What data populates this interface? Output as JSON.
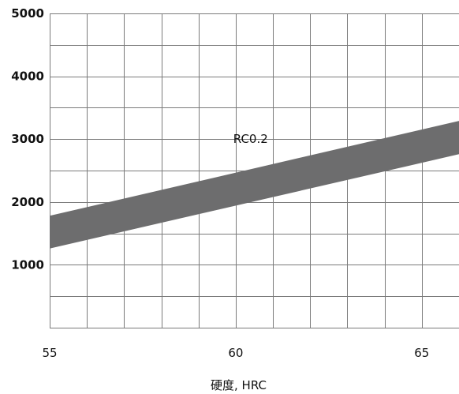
{
  "chart_data": {
    "type": "area",
    "xlabel": "硬度, HRC",
    "ylabel": "",
    "xlim": [
      55,
      66
    ],
    "ylim": [
      0,
      5000
    ],
    "x_ticks": [
      55,
      60,
      65
    ],
    "y_ticks": [
      1000,
      2000,
      3000,
      4000,
      5000
    ],
    "x_grid_step": 1,
    "y_grid_step": 500,
    "grid": true,
    "band_color": "#6d6d6e",
    "series": [
      {
        "name": "RC0.2",
        "x": [
          55,
          66
        ],
        "upper": [
          1780,
          3290
        ],
        "lower": [
          1260,
          2760
        ]
      }
    ],
    "annotations": [
      {
        "text": "RC0.2",
        "x": 60.4,
        "y": 3000
      }
    ]
  }
}
